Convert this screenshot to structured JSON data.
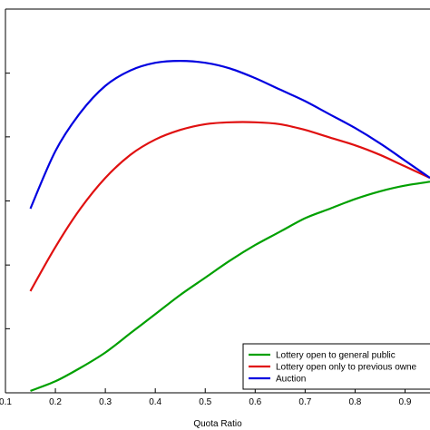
{
  "chart_data": {
    "type": "line",
    "xlabel": "Quota Ratio",
    "ylabel": "",
    "title": "",
    "xlim": [
      0.1,
      0.95
    ],
    "ylim": [
      0,
      1
    ],
    "grid": false,
    "legend_position": "bottom-right",
    "x_ticks": [
      0.1,
      0.2,
      0.3,
      0.4,
      0.5,
      0.6,
      0.7,
      0.8,
      0.9
    ],
    "x_tick_labels": [
      "0.1",
      "0.2",
      "0.3",
      "0.4",
      "0.5",
      "0.6",
      "0.7",
      "0.8",
      "0.9"
    ],
    "y_ticks": [
      0.0,
      0.167,
      0.333,
      0.5,
      0.667,
      0.833,
      1.0
    ],
    "x": [
      0.15,
      0.2,
      0.25,
      0.3,
      0.35,
      0.4,
      0.45,
      0.5,
      0.55,
      0.6,
      0.65,
      0.7,
      0.75,
      0.8,
      0.85,
      0.9,
      0.95
    ],
    "series": [
      {
        "name": "Lottery open to general public",
        "color": "#00a000",
        "values": [
          0.005,
          0.03,
          0.065,
          0.105,
          0.155,
          0.205,
          0.255,
          0.3,
          0.345,
          0.385,
          0.42,
          0.455,
          0.48,
          0.505,
          0.525,
          0.54,
          0.55
        ]
      },
      {
        "name": "Lottery open only to previous owners",
        "color": "#e01010",
        "values": [
          0.265,
          0.38,
          0.48,
          0.56,
          0.62,
          0.66,
          0.685,
          0.7,
          0.705,
          0.705,
          0.7,
          0.685,
          0.665,
          0.645,
          0.62,
          0.59,
          0.56
        ]
      },
      {
        "name": "Auction",
        "color": "#0000e0",
        "values": [
          0.48,
          0.63,
          0.73,
          0.8,
          0.84,
          0.86,
          0.865,
          0.86,
          0.845,
          0.82,
          0.79,
          0.76,
          0.725,
          0.69,
          0.65,
          0.605,
          0.56
        ]
      }
    ],
    "legend_labels": [
      "Lottery open to general public",
      "Lottery open only to previous owne",
      "Auction"
    ]
  }
}
